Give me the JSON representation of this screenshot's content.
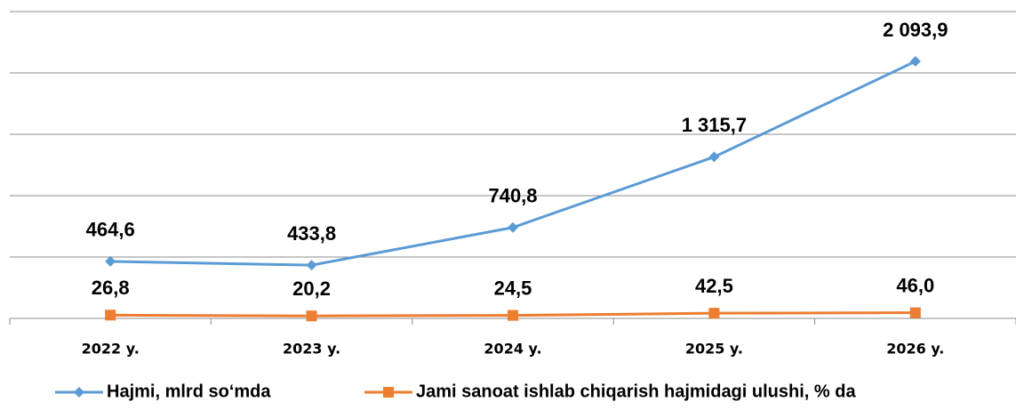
{
  "chart_data": {
    "type": "line",
    "categories": [
      "2022 y.",
      "2023 y.",
      "2024 y.",
      "2025 y.",
      "2026 y."
    ],
    "series": [
      {
        "name": "Hajmi, mlrd so‘mda",
        "color": "#5b9bd5",
        "marker": "diamond",
        "values": [
          464.6,
          433.8,
          740.8,
          1315.7,
          2093.9
        ],
        "value_labels": [
          "464,6",
          "433,8",
          "740,8",
          "1 315,7",
          "2 093,9"
        ]
      },
      {
        "name": "Jami sanoat ishlab chiqarish hajmidagi ulushi, % da",
        "color": "#ed7d31",
        "marker": "square",
        "values": [
          26.8,
          20.2,
          24.5,
          42.5,
          46.0
        ],
        "value_labels": [
          "26,8",
          "20,2",
          "24,5",
          "42,5",
          "46,0"
        ]
      }
    ],
    "ylim": [
      0,
      2500
    ],
    "yticks": [
      0,
      500,
      1000,
      1500,
      2000,
      2500
    ],
    "grid": true,
    "legend": "bottom"
  }
}
